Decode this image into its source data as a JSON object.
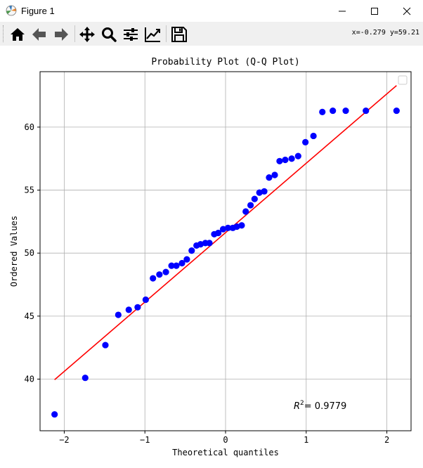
{
  "window": {
    "title": "Figure 1",
    "app_icon": "matplotlib-icon",
    "controls": [
      "minimize-icon",
      "maximize-icon",
      "close-icon"
    ]
  },
  "toolbar": {
    "buttons": [
      "home-icon",
      "back-arrow-icon",
      "forward-arrow-icon",
      "pan-icon",
      "zoom-icon",
      "configure-subplots-icon",
      "edit-axis-icon",
      "save-icon"
    ],
    "coords": "x=-0.279 y=59.21"
  },
  "chart_data": {
    "type": "scatter",
    "title": "Probability Plot (Q-Q Plot)",
    "xlabel": "Theoretical quantiles",
    "ylabel": "Ordered Values",
    "xlim": [
      -2.3,
      2.3
    ],
    "ylim": [
      35.9,
      64.4
    ],
    "xticks": [
      -2,
      -1,
      0,
      1,
      2
    ],
    "yticks": [
      40,
      45,
      50,
      55,
      60
    ],
    "grid": true,
    "legend": {
      "placement": "top-right",
      "entries": []
    },
    "annotation": {
      "text": "= 0.9779",
      "prefix": "R",
      "superscript": "2"
    },
    "colors": {
      "points": "#0000ff",
      "line": "#ff0000"
    },
    "fit_line": {
      "x": [
        -2.12,
        2.12
      ],
      "y": [
        39.95,
        63.3
      ]
    },
    "series": [
      {
        "kind": "points",
        "x": [
          -2.12,
          -1.74,
          -1.49,
          -1.33,
          -1.2,
          -1.09,
          -0.99,
          -0.9,
          -0.82,
          -0.74,
          -0.67,
          -0.61,
          -0.54,
          -0.48,
          -0.42,
          -0.36,
          -0.31,
          -0.25,
          -0.2,
          -0.14,
          -0.09,
          -0.03,
          0.03,
          0.09,
          0.14,
          0.2,
          0.25,
          0.31,
          0.36,
          0.42,
          0.48,
          0.54,
          0.61,
          0.67,
          0.74,
          0.82,
          0.9,
          0.99,
          1.09,
          1.2,
          1.33,
          1.49,
          1.74,
          2.12
        ],
        "y": [
          37.2,
          40.1,
          42.7,
          45.1,
          45.5,
          45.7,
          46.3,
          48.0,
          48.3,
          48.5,
          49.0,
          49.0,
          49.2,
          49.5,
          50.2,
          50.6,
          50.7,
          50.8,
          50.8,
          51.5,
          51.6,
          51.9,
          52.0,
          52.0,
          52.1,
          52.2,
          53.3,
          53.8,
          54.3,
          54.8,
          54.9,
          56.0,
          56.2,
          57.3,
          57.4,
          57.5,
          57.7,
          58.8,
          59.3,
          61.2,
          61.3,
          61.3,
          61.3,
          61.3
        ]
      }
    ]
  }
}
